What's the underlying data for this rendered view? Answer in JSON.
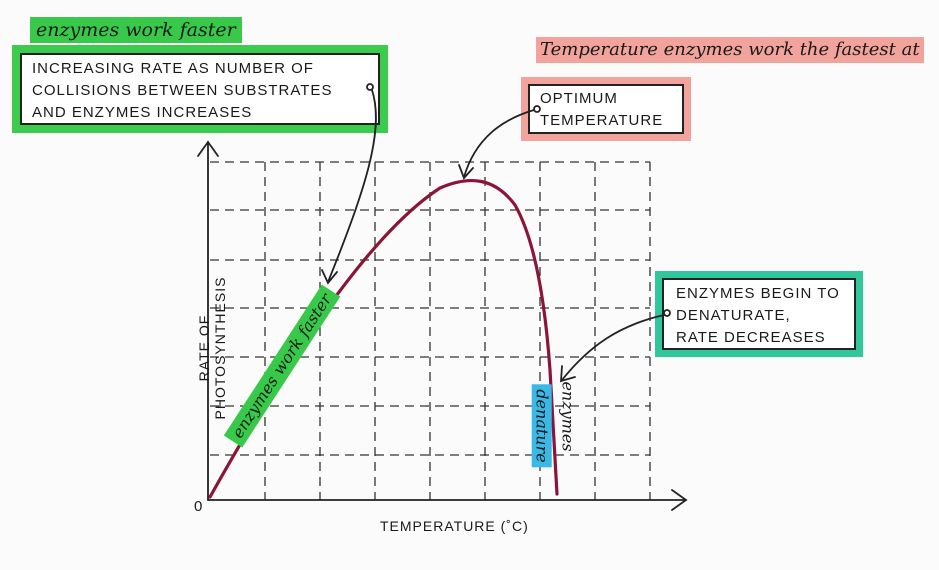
{
  "heading_left": "enzymes work faster",
  "heading_right": "Temperature enzymes work the fastest at",
  "box_collisions": {
    "lines": [
      "INCREASING RATE AS NUMBER OF",
      "COLLISIONS BETWEEN SUBSTRATES",
      "AND ENZYMES INCREASES"
    ]
  },
  "box_optimum": {
    "lines": [
      "OPTIMUM",
      "TEMPERATURE"
    ]
  },
  "box_denature": {
    "lines": [
      "ENZYMES BEGIN TO",
      "DENATURATE,",
      "RATE DECREASES"
    ]
  },
  "curve_label_rise": "enzymes work faster",
  "curve_label_fall_1": "enzymes",
  "curve_label_fall_2": "denature",
  "axes": {
    "y_label": "RATE OF PHOTOSYNTHESIS",
    "x_label": "TEMPERATURE (˚C)",
    "origin": "0"
  },
  "colors": {
    "curve": "#8a1538",
    "green": "#39c94a",
    "pink": "#f2a39b",
    "teal": "#2ec49a",
    "cyan": "#3ab8e6"
  }
}
